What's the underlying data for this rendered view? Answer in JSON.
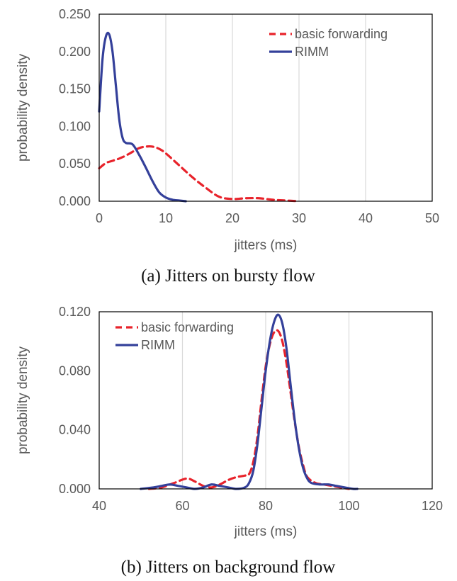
{
  "colors": {
    "basic_forwarding": "#e8232b",
    "rimm": "#34409a",
    "grid": "#d9d9d9",
    "axis_text": "#595959",
    "frame": "#000000"
  },
  "chart_data": [
    {
      "type": "line",
      "caption": "(a) Jitters on bursty flow",
      "xlabel": "jitters (ms)",
      "ylabel": "probability density",
      "xlim": [
        0,
        50
      ],
      "ylim": [
        0,
        0.25
      ],
      "xticks": [
        0,
        10,
        20,
        30,
        40,
        50
      ],
      "xtick_labels": [
        "0",
        "10",
        "20",
        "30",
        "40",
        "50"
      ],
      "yticks": [
        0,
        0.05,
        0.1,
        0.15,
        0.2,
        0.25
      ],
      "ytick_labels": [
        "0.000",
        "0.050",
        "0.100",
        "0.150",
        "0.200",
        "0.250"
      ],
      "grid": "vertical",
      "legend": "top-right",
      "series": [
        {
          "name": "basic forwarding",
          "style": "dashed",
          "x": [
            0,
            1,
            2,
            3,
            4,
            5,
            6,
            7,
            8,
            9,
            10,
            12,
            14,
            16,
            18,
            20,
            22,
            24,
            26,
            28,
            30
          ],
          "y": [
            0.044,
            0.051,
            0.054,
            0.057,
            0.061,
            0.066,
            0.071,
            0.073,
            0.073,
            0.07,
            0.064,
            0.048,
            0.032,
            0.018,
            0.006,
            0.003,
            0.004,
            0.004,
            0.002,
            0.001,
            0.0
          ]
        },
        {
          "name": "RIMM",
          "style": "solid",
          "x": [
            0,
            0.5,
            1,
            1.5,
            2,
            2.5,
            3,
            3.5,
            4,
            5,
            6,
            7,
            8,
            9,
            10,
            11,
            12,
            13
          ],
          "y": [
            0.12,
            0.19,
            0.22,
            0.223,
            0.2,
            0.155,
            0.11,
            0.085,
            0.078,
            0.076,
            0.062,
            0.045,
            0.027,
            0.012,
            0.005,
            0.002,
            0.001,
            0.0
          ]
        }
      ]
    },
    {
      "type": "line",
      "caption": "(b) Jitters on background flow",
      "xlabel": "jitters (ms)",
      "ylabel": "probability density",
      "xlim": [
        40,
        120
      ],
      "ylim": [
        0,
        0.12
      ],
      "xticks": [
        40,
        60,
        80,
        100,
        120
      ],
      "xtick_labels": [
        "40",
        "60",
        "80",
        "100",
        "120"
      ],
      "yticks": [
        0,
        0.04,
        0.08,
        0.12
      ],
      "ytick_labels": [
        "0.000",
        "0.040",
        "0.080",
        "0.120"
      ],
      "grid": "vertical",
      "legend": "top-left",
      "series": [
        {
          "name": "basic forwarding",
          "style": "dashed",
          "x": [
            52,
            55,
            58,
            61,
            63,
            65,
            67,
            69,
            71,
            73,
            75,
            76,
            77,
            78,
            79,
            80,
            81,
            82,
            83,
            84,
            85,
            86,
            87,
            88,
            89,
            90,
            92,
            94,
            96,
            98,
            100
          ],
          "y": [
            0.0,
            0.001,
            0.004,
            0.007,
            0.005,
            0.002,
            0.001,
            0.003,
            0.006,
            0.008,
            0.009,
            0.01,
            0.018,
            0.035,
            0.06,
            0.083,
            0.098,
            0.106,
            0.107,
            0.1,
            0.085,
            0.065,
            0.045,
            0.028,
            0.016,
            0.008,
            0.004,
            0.003,
            0.002,
            0.001,
            0.0
          ]
        },
        {
          "name": "RIMM",
          "style": "solid",
          "x": [
            50,
            53,
            55,
            57,
            59,
            61,
            63,
            65,
            67,
            69,
            71,
            73,
            75,
            76,
            77,
            78,
            79,
            80,
            81,
            82,
            83,
            84,
            85,
            86,
            87,
            88,
            89,
            90,
            91,
            93,
            95,
            97,
            99,
            101,
            102
          ],
          "y": [
            0.0,
            0.001,
            0.002,
            0.003,
            0.002,
            0.001,
            0.0,
            0.001,
            0.003,
            0.002,
            0.001,
            0.0,
            0.001,
            0.004,
            0.012,
            0.03,
            0.055,
            0.08,
            0.1,
            0.113,
            0.118,
            0.112,
            0.095,
            0.07,
            0.046,
            0.027,
            0.014,
            0.007,
            0.004,
            0.003,
            0.003,
            0.002,
            0.001,
            0.0,
            0.0
          ]
        }
      ]
    }
  ]
}
